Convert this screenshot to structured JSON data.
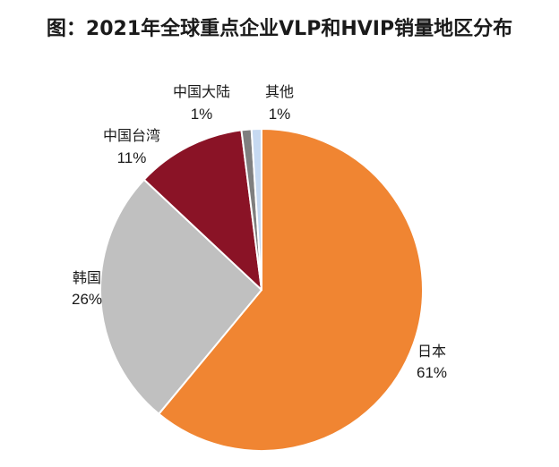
{
  "chart_data": {
    "type": "pie",
    "title": "图：2021年全球重点企业VLP和HVIP销量地区分布",
    "slices": [
      {
        "label": "日本",
        "value": 61,
        "display": "61%",
        "color": "#F08532"
      },
      {
        "label": "韩国",
        "value": 26,
        "display": "26%",
        "color": "#C0C0C0"
      },
      {
        "label": "中国台湾",
        "value": 11,
        "display": "11%",
        "color": "#8A1326"
      },
      {
        "label": "中国大陆",
        "value": 1,
        "display": "1%",
        "color": "#7F7F7F"
      },
      {
        "label": "其他",
        "value": 1,
        "display": "1%",
        "color": "#C6D9F1"
      }
    ]
  }
}
